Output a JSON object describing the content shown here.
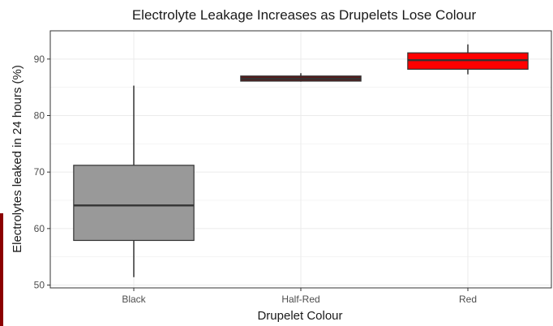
{
  "chart_data": {
    "type": "boxplot",
    "title": "Electrolyte Leakage Increases as Drupelets Lose Colour",
    "xlabel": "Drupelet Colour",
    "ylabel": "Electrolytes leaked in 24 hours (%)",
    "categories": [
      "Black",
      "Half-Red",
      "Red"
    ],
    "ylim": [
      49.5,
      95
    ],
    "yticks": [
      50,
      60,
      70,
      80,
      90
    ],
    "grid": true,
    "legend": "none",
    "boxes": [
      {
        "category": "Black",
        "whisker_low": 51.4,
        "q1": 57.9,
        "median": 64.1,
        "q3": 71.2,
        "whisker_high": 85.3,
        "fill": "#999999"
      },
      {
        "category": "Half-Red",
        "whisker_low": 86.0,
        "q1": 86.1,
        "median": 86.5,
        "q3": 87.0,
        "whisker_high": 87.5,
        "fill": "#5a1a1a"
      },
      {
        "category": "Red",
        "whisker_low": 87.3,
        "q1": 88.2,
        "median": 89.8,
        "q3": 91.1,
        "whisker_high": 92.6,
        "fill": "#ff0000"
      }
    ]
  }
}
